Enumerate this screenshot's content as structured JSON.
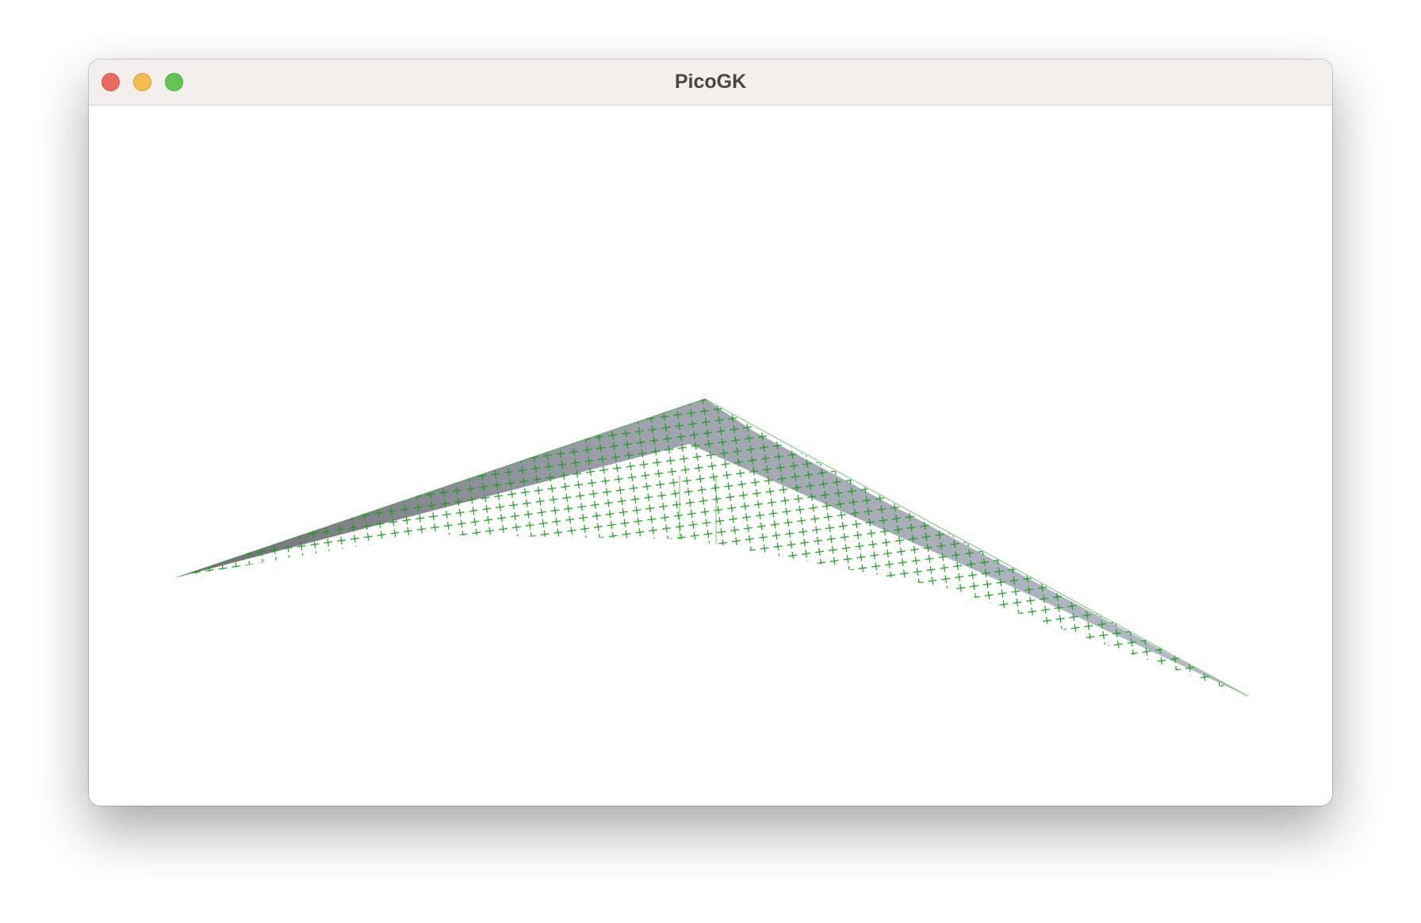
{
  "window": {
    "title": "PicoGK"
  }
}
